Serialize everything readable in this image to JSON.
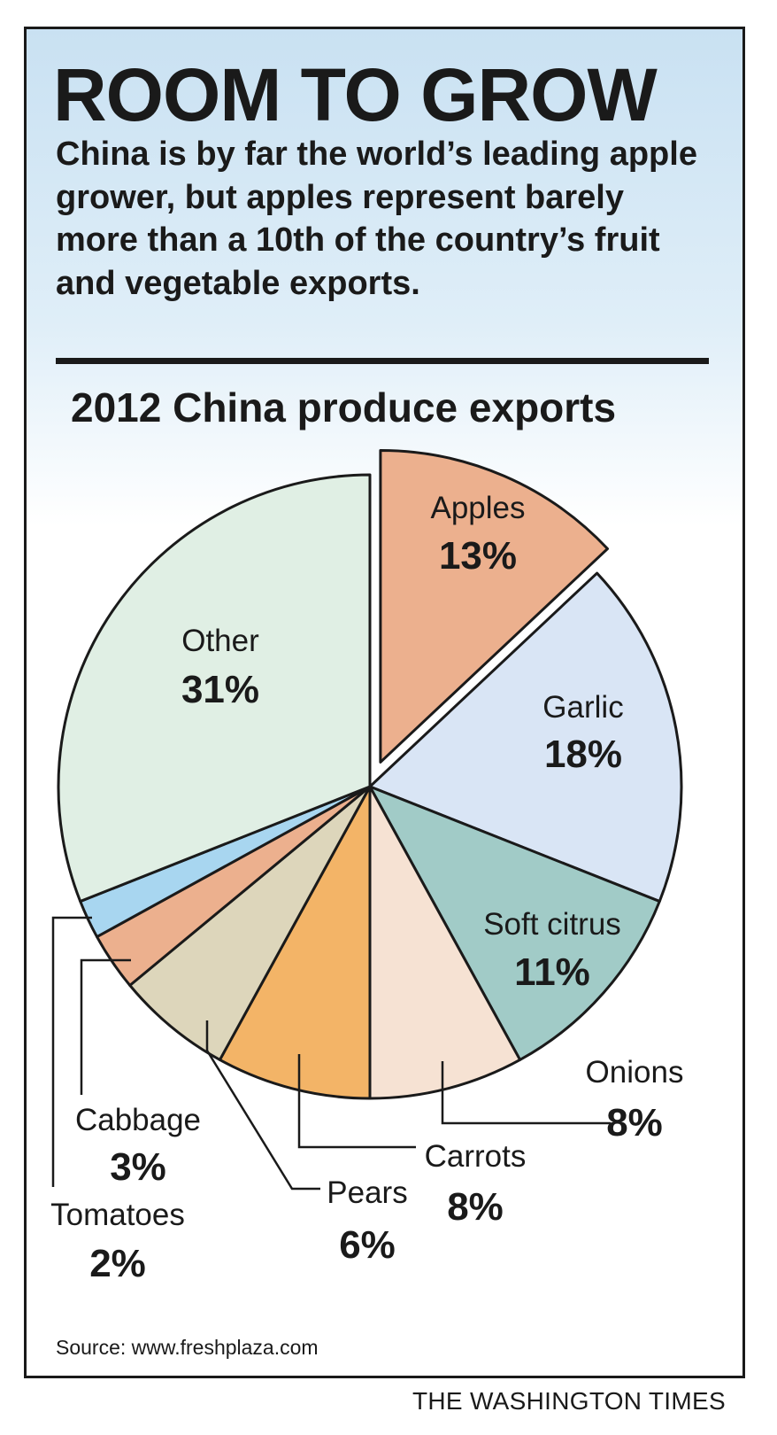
{
  "header": {
    "title": "ROOM TO GROW",
    "subtitle": "China is by far the world’s leading apple grower, but apples represent barely more than a 10th of the country’s fruit and vegetable exports."
  },
  "chart_data": {
    "type": "pie",
    "title": "2012 China produce exports",
    "slices": [
      {
        "label": "Apples",
        "value": 13,
        "display": "13%",
        "color": "#ecb08e",
        "exploded": true
      },
      {
        "label": "Garlic",
        "value": 18,
        "display": "18%",
        "color": "#d9e5f5"
      },
      {
        "label": "Soft citrus",
        "value": 11,
        "display": "11%",
        "color": "#a1cbc7"
      },
      {
        "label": "Onions",
        "value": 8,
        "display": "8%",
        "color": "#f6e2d3"
      },
      {
        "label": "Carrots",
        "value": 8,
        "display": "8%",
        "color": "#f3b467"
      },
      {
        "label": "Pears",
        "value": 6,
        "display": "6%",
        "color": "#ddd6bb"
      },
      {
        "label": "Cabbage",
        "value": 3,
        "display": "3%",
        "color": "#ecb08e"
      },
      {
        "label": "Tomatoes",
        "value": 2,
        "display": "2%",
        "color": "#a8d6f0"
      },
      {
        "label": "Other",
        "value": 31,
        "display": "31%",
        "color": "#e0efe4"
      }
    ]
  },
  "footer": {
    "source": "Source: www.freshplaza.com",
    "credit": "THE WASHINGTON TIMES"
  }
}
